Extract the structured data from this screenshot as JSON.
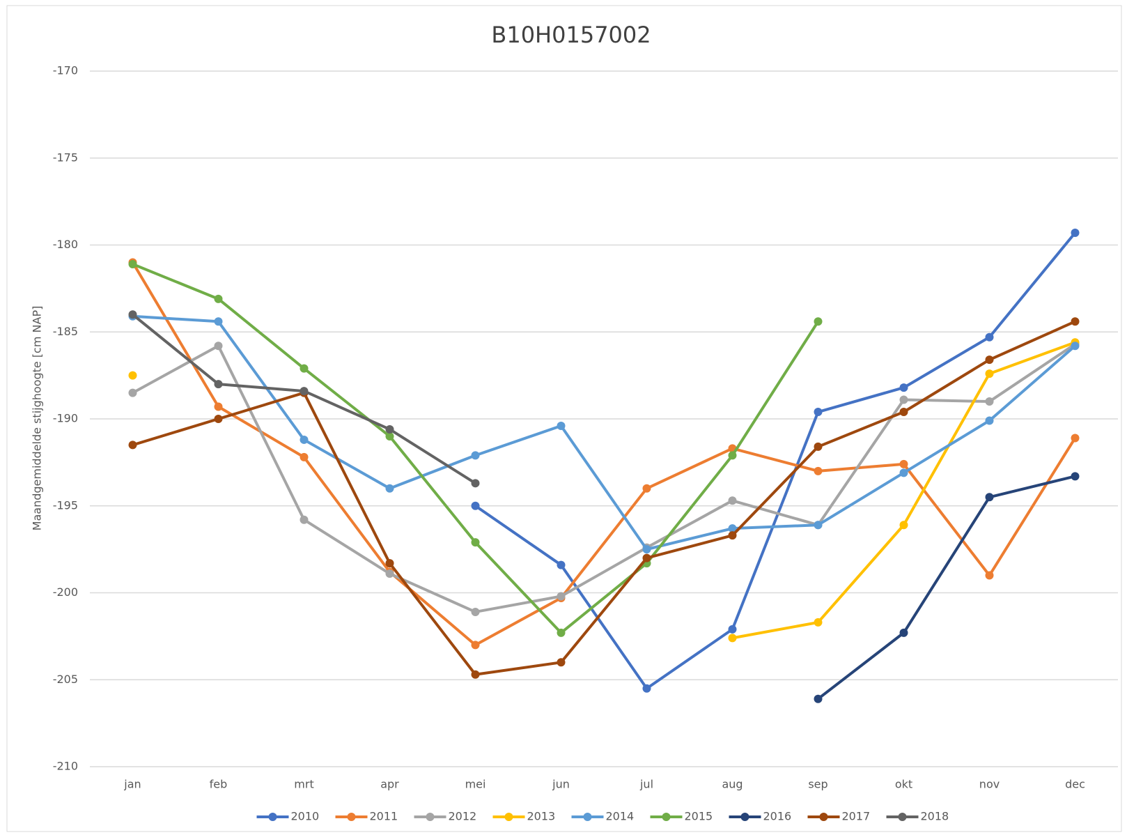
{
  "chart_data": {
    "type": "line",
    "title": "B10H0157002",
    "y_label": "Maandgemiddelde stijghoogte [cm NAP]",
    "categories": [
      "jan",
      "feb",
      "mrt",
      "apr",
      "mei",
      "jun",
      "jul",
      "aug",
      "sep",
      "okt",
      "nov",
      "dec"
    ],
    "ylim": [
      -210,
      -170
    ],
    "yticks": [
      -210,
      -205,
      -200,
      -195,
      -190,
      -185,
      -180,
      -175,
      -170
    ],
    "grid": true,
    "legend": "bottom",
    "series": [
      {
        "name": "2010",
        "color": "#4472c4",
        "values": [
          null,
          null,
          null,
          null,
          -195.0,
          -198.4,
          -205.5,
          -202.1,
          -189.6,
          -188.2,
          -185.3,
          -179.3
        ]
      },
      {
        "name": "2011",
        "color": "#ed7d31",
        "values": [
          -181.0,
          -189.3,
          -192.2,
          -198.8,
          -203.0,
          -200.3,
          -194.0,
          -191.7,
          -193.0,
          -192.6,
          -199.0,
          -191.1
        ]
      },
      {
        "name": "2012",
        "color": "#a5a5a5",
        "values": [
          -188.5,
          -185.8,
          -195.8,
          -198.9,
          -201.1,
          -200.2,
          -197.4,
          -194.7,
          -196.1,
          -188.9,
          -189.0,
          -185.7
        ]
      },
      {
        "name": "2013",
        "color": "#ffc000",
        "values": [
          -187.5,
          null,
          null,
          null,
          null,
          null,
          null,
          -202.6,
          -201.7,
          -196.1,
          -187.4,
          -185.6
        ]
      },
      {
        "name": "2014",
        "color": "#5b9bd5",
        "values": [
          -184.1,
          -184.4,
          -191.2,
          -194.0,
          -192.1,
          -190.4,
          -197.5,
          -196.3,
          -196.1,
          -193.1,
          -190.1,
          -185.8
        ]
      },
      {
        "name": "2015",
        "color": "#70ad47",
        "values": [
          -181.1,
          -183.1,
          -187.1,
          -191.0,
          -197.1,
          -202.3,
          -198.3,
          -192.1,
          -184.4,
          null,
          null,
          null
        ]
      },
      {
        "name": "2016",
        "color": "#264478",
        "values": [
          null,
          null,
          null,
          null,
          null,
          null,
          null,
          null,
          -206.1,
          -202.3,
          -194.5,
          -193.3
        ]
      },
      {
        "name": "2017",
        "color": "#9e480e",
        "values": [
          -191.5,
          -190.0,
          -188.5,
          -198.3,
          -204.7,
          -204.0,
          -198.0,
          -196.7,
          -191.6,
          -189.6,
          -186.6,
          -184.4
        ]
      },
      {
        "name": "2018",
        "color": "#636363",
        "values": [
          -184.0,
          -188.0,
          -188.4,
          -190.6,
          -193.7,
          null,
          null,
          null,
          null,
          null,
          null,
          null
        ]
      }
    ]
  }
}
